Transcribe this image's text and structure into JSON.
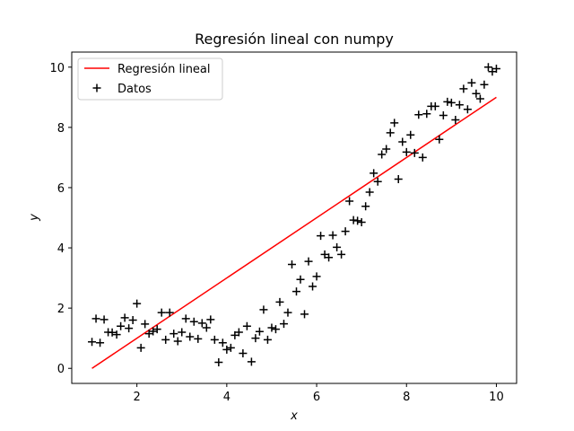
{
  "chart_data": {
    "type": "scatter",
    "title": "Regresión lineal con numpy",
    "xlabel": "x",
    "ylabel": "y",
    "xlim": [
      0.55,
      10.45
    ],
    "ylim": [
      -0.5,
      10.5
    ],
    "xticks": [
      2,
      4,
      6,
      8,
      10
    ],
    "yticks": [
      0,
      2,
      4,
      6,
      8,
      10
    ],
    "grid": false,
    "legend_position": "top-left",
    "colors": {
      "regression": "#ff0000",
      "points": "#000000"
    },
    "series": [
      {
        "name": "Regresión lineal",
        "kind": "line",
        "x": [
          1,
          10
        ],
        "y": [
          0.0,
          9.0
        ]
      },
      {
        "name": "Datos",
        "kind": "scatter",
        "marker": "plus",
        "x": [
          1.0,
          1.09,
          1.18,
          1.27,
          1.36,
          1.45,
          1.55,
          1.64,
          1.73,
          1.82,
          1.91,
          2.0,
          2.09,
          2.18,
          2.27,
          2.36,
          2.45,
          2.55,
          2.64,
          2.73,
          2.82,
          2.91,
          3.0,
          3.09,
          3.18,
          3.27,
          3.36,
          3.45,
          3.55,
          3.64,
          3.73,
          3.82,
          3.91,
          4.0,
          4.09,
          4.18,
          4.27,
          4.36,
          4.45,
          4.55,
          4.64,
          4.73,
          4.82,
          4.91,
          5.0,
          5.09,
          5.18,
          5.27,
          5.36,
          5.45,
          5.55,
          5.64,
          5.73,
          5.82,
          5.91,
          6.0,
          6.09,
          6.18,
          6.27,
          6.36,
          6.45,
          6.55,
          6.64,
          6.73,
          6.82,
          6.91,
          7.0,
          7.09,
          7.18,
          7.27,
          7.36,
          7.45,
          7.55,
          7.64,
          7.73,
          7.82,
          7.91,
          8.0,
          8.09,
          8.18,
          8.27,
          8.36,
          8.45,
          8.55,
          8.64,
          8.73,
          8.82,
          8.91,
          9.0,
          9.09,
          9.18,
          9.27,
          9.36,
          9.45,
          9.55,
          9.64,
          9.73,
          9.82,
          9.91,
          10.0
        ],
        "y": [
          0.88,
          1.65,
          0.85,
          1.62,
          1.2,
          1.19,
          1.12,
          1.4,
          1.68,
          1.33,
          1.6,
          2.15,
          0.68,
          1.47,
          1.15,
          1.23,
          1.3,
          1.85,
          0.95,
          1.85,
          1.15,
          0.9,
          1.2,
          1.65,
          1.05,
          1.55,
          0.98,
          1.5,
          1.35,
          1.62,
          0.95,
          0.2,
          0.85,
          0.62,
          0.68,
          1.1,
          1.2,
          0.5,
          1.4,
          0.22,
          1.0,
          1.22,
          1.95,
          0.95,
          1.35,
          1.3,
          2.2,
          1.48,
          1.85,
          3.45,
          2.55,
          2.95,
          1.8,
          3.55,
          2.72,
          3.05,
          4.4,
          3.78,
          3.68,
          4.42,
          4.02,
          3.78,
          4.55,
          5.55,
          4.92,
          4.9,
          4.85,
          5.38,
          5.85,
          6.48,
          6.2,
          7.1,
          7.28,
          7.82,
          8.15,
          6.28,
          7.52,
          7.18,
          7.75,
          7.15,
          8.42,
          7.0,
          8.45,
          8.7,
          8.7,
          7.6,
          8.4,
          8.85,
          8.82,
          8.25,
          8.75,
          9.28,
          8.6,
          9.48,
          9.12,
          8.95,
          9.42,
          10.0,
          9.85,
          9.95
        ]
      }
    ]
  }
}
